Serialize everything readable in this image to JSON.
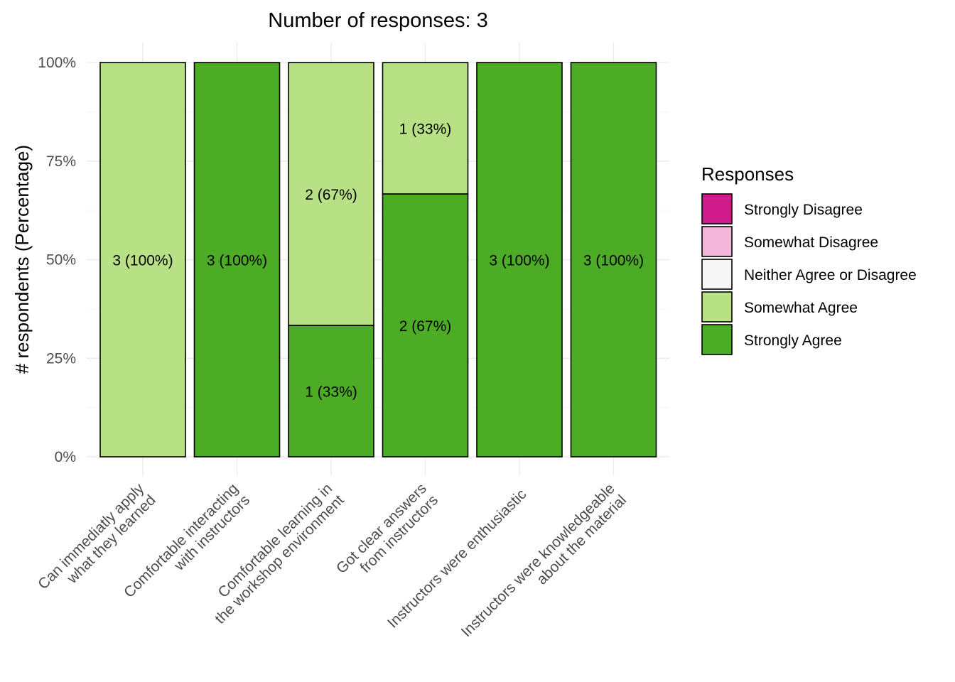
{
  "chart_data": {
    "type": "bar",
    "stacked": true,
    "orientation": "vertical",
    "title": "Number of responses: 3",
    "xlabel": "",
    "ylabel": "# respondents (Percentage)",
    "ylim": [
      0,
      100
    ],
    "yticks": [
      "0%",
      "25%",
      "50%",
      "75%",
      "100%"
    ],
    "ytick_values": [
      0,
      25,
      50,
      75,
      100
    ],
    "grid": true,
    "categories": [
      [
        "Can immediatly apply",
        "what they learned"
      ],
      [
        "Comfortable interacting",
        "with instructors"
      ],
      [
        "Comfortable learning in",
        "the workshop environment"
      ],
      [
        "Got clear answers",
        "from instructors"
      ],
      [
        "Instructors were enthusiastic"
      ],
      [
        "Instructors were knowledgeable",
        "about the material"
      ]
    ],
    "series": [
      {
        "name": "Strongly Disagree",
        "color": "#d01c8b",
        "counts": [
          0,
          0,
          0,
          0,
          0,
          0
        ],
        "values": [
          0,
          0,
          0,
          0,
          0,
          0
        ],
        "labels": [
          "",
          "",
          "",
          "",
          "",
          ""
        ]
      },
      {
        "name": "Somewhat Disagree",
        "color": "#f1b6da",
        "counts": [
          0,
          0,
          0,
          0,
          0,
          0
        ],
        "values": [
          0,
          0,
          0,
          0,
          0,
          0
        ],
        "labels": [
          "",
          "",
          "",
          "",
          "",
          ""
        ]
      },
      {
        "name": "Neither Agree or Disagree",
        "color": "#f7f7f7",
        "counts": [
          0,
          0,
          0,
          0,
          0,
          0
        ],
        "values": [
          0,
          0,
          0,
          0,
          0,
          0
        ],
        "labels": [
          "",
          "",
          "",
          "",
          "",
          ""
        ]
      },
      {
        "name": "Somewhat Agree",
        "color": "#b8e186",
        "counts": [
          3,
          0,
          2,
          1,
          0,
          0
        ],
        "values": [
          100,
          0,
          66.67,
          33.33,
          0,
          0
        ],
        "labels": [
          "3 (100%)",
          "",
          "2 (67%)",
          "1 (33%)",
          "",
          ""
        ]
      },
      {
        "name": "Strongly Agree",
        "color": "#4dac26",
        "counts": [
          0,
          3,
          1,
          2,
          3,
          3
        ],
        "values": [
          0,
          100,
          33.33,
          66.67,
          100,
          100
        ],
        "labels": [
          "",
          "3 (100%)",
          "1 (33%)",
          "2 (67%)",
          "3 (100%)",
          "3 (100%)"
        ]
      }
    ],
    "legend": {
      "title": "Responses",
      "position": "right",
      "entries": [
        "Strongly Disagree",
        "Somewhat Disagree",
        "Neither Agree or Disagree",
        "Somewhat Agree",
        "Strongly Agree"
      ]
    },
    "stack_order_bottom_to_top": [
      "Strongly Agree",
      "Somewhat Agree",
      "Neither Agree or Disagree",
      "Somewhat Disagree",
      "Strongly Disagree"
    ]
  }
}
